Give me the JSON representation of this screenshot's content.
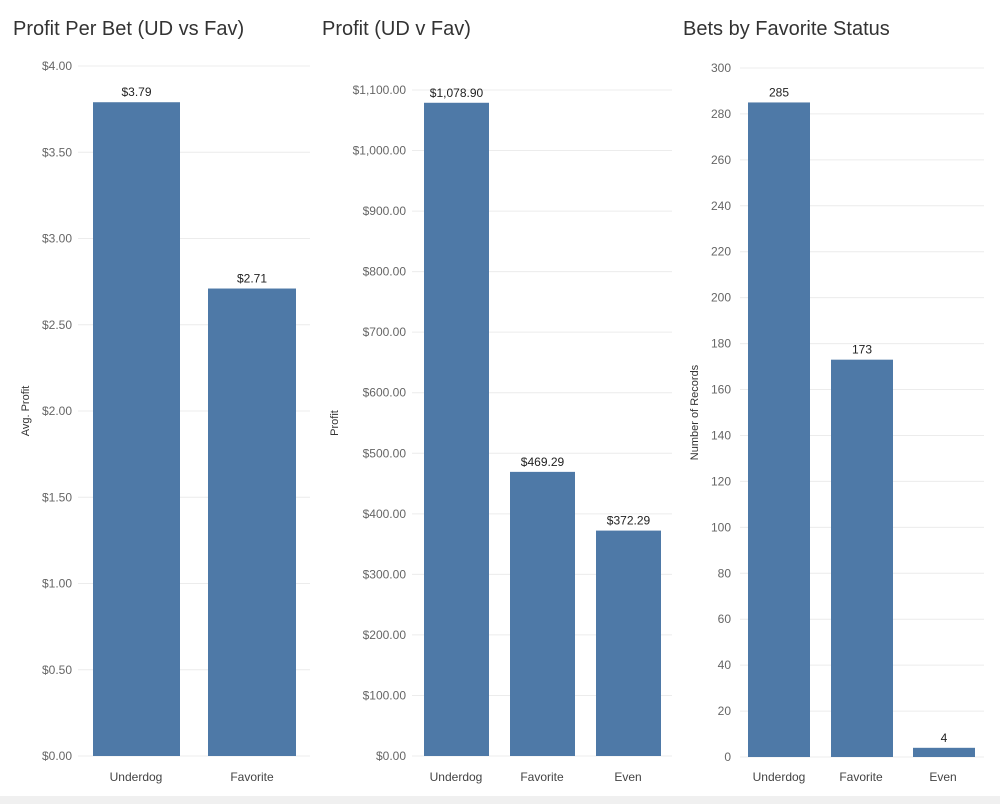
{
  "chart_data": [
    {
      "type": "bar",
      "title": "Profit Per Bet (UD vs Fav)",
      "ylabel": "Avg. Profit",
      "categories": [
        "Underdog",
        "Favorite"
      ],
      "values": [
        3.79,
        2.71
      ],
      "data_labels": [
        "$3.79",
        "$2.71"
      ],
      "ylim": [
        0,
        4.0
      ],
      "yticks": [
        0,
        0.5,
        1.0,
        1.5,
        2.0,
        2.5,
        3.0,
        3.5,
        4.0
      ],
      "ytick_labels": [
        "$0.00",
        "$0.50",
        "$1.00",
        "$1.50",
        "$2.00",
        "$2.50",
        "$3.00",
        "$3.50",
        "$4.00"
      ],
      "color": "#4e79a7",
      "grid": true
    },
    {
      "type": "bar",
      "title": "Profit (UD v Fav)",
      "ylabel": "Profit",
      "categories": [
        "Underdog",
        "Favorite",
        "Even"
      ],
      "values": [
        1078.9,
        469.29,
        372.29
      ],
      "data_labels": [
        "$1,078.90",
        "$469.29",
        "$372.29"
      ],
      "ylim": [
        0,
        1100
      ],
      "yticks": [
        0,
        100,
        200,
        300,
        400,
        500,
        600,
        700,
        800,
        900,
        1000,
        1100
      ],
      "ytick_labels": [
        "$0.00",
        "$100.00",
        "$200.00",
        "$300.00",
        "$400.00",
        "$500.00",
        "$600.00",
        "$700.00",
        "$800.00",
        "$900.00",
        "$1,000.00",
        "$1,100.00"
      ],
      "color": "#4e79a7",
      "grid": true
    },
    {
      "type": "bar",
      "title": "Bets by Favorite Status",
      "ylabel": "Number of Records",
      "categories": [
        "Underdog",
        "Favorite",
        "Even"
      ],
      "values": [
        285,
        173,
        4
      ],
      "data_labels": [
        "285",
        "173",
        "4"
      ],
      "ylim": [
        0,
        300
      ],
      "yticks": [
        0,
        20,
        40,
        60,
        80,
        100,
        120,
        140,
        160,
        180,
        200,
        220,
        240,
        260,
        280,
        300
      ],
      "ytick_labels": [
        "0",
        "20",
        "40",
        "60",
        "80",
        "100",
        "120",
        "140",
        "160",
        "180",
        "200",
        "220",
        "240",
        "260",
        "280",
        "300"
      ],
      "color": "#4e79a7",
      "grid": true
    }
  ]
}
